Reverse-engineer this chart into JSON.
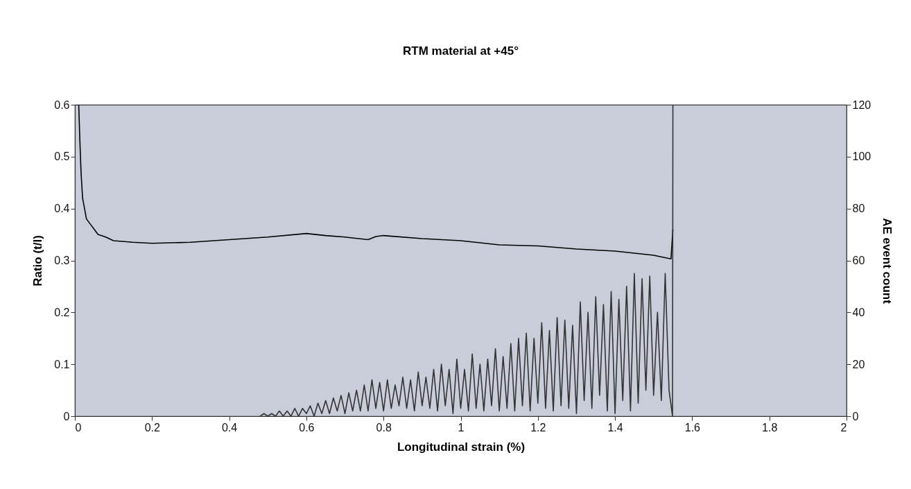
{
  "chart_data": {
    "type": "line",
    "title": "RTM material at +45°",
    "xlabel": "Longitudinal strain (%)",
    "ylabel": "Ratio (t/l)",
    "y2label": "AE event count",
    "xlim": [
      0,
      2
    ],
    "xticks": [
      0,
      0.2,
      0.4,
      0.6,
      0.8,
      1,
      1.2,
      1.4,
      1.6,
      1.8,
      2
    ],
    "ylim": [
      0,
      0.6
    ],
    "yticks": [
      0,
      0.1,
      0.2,
      0.3,
      0.4,
      0.5,
      0.6
    ],
    "y2lim": [
      0,
      120
    ],
    "y2ticks": [
      0,
      20,
      40,
      60,
      80,
      100,
      120
    ],
    "grid": false,
    "marker": "none",
    "line_style": "solid",
    "series": [
      {
        "color": "#000000",
        "x": [
          0.01,
          0.013,
          0.016,
          0.02,
          0.025,
          0.03,
          0.04,
          0.05,
          0.06,
          0.08,
          0.1,
          0.15,
          0.2,
          0.3,
          0.4,
          0.5,
          0.6,
          0.65,
          0.7,
          0.76,
          0.78,
          0.8,
          0.9,
          1.0,
          1.1,
          1.2,
          1.3,
          1.4,
          1.5,
          1.545,
          1.55
        ],
        "values": [
          0.6,
          0.53,
          0.47,
          0.42,
          0.4,
          0.38,
          0.37,
          0.36,
          0.35,
          0.345,
          0.338,
          0.335,
          0.333,
          0.335,
          0.34,
          0.345,
          0.352,
          0.348,
          0.345,
          0.34,
          0.346,
          0.348,
          0.342,
          0.338,
          0.33,
          0.328,
          0.322,
          0.318,
          0.31,
          0.303,
          0.36
        ]
      },
      {
        "color": "#333333",
        "axis": "y2",
        "x": [
          0.48,
          0.49,
          0.5,
          0.51,
          0.52,
          0.53,
          0.54,
          0.55,
          0.56,
          0.57,
          0.58,
          0.59,
          0.6,
          0.61,
          0.62,
          0.63,
          0.64,
          0.65,
          0.66,
          0.67,
          0.68,
          0.69,
          0.7,
          0.71,
          0.72,
          0.73,
          0.74,
          0.75,
          0.76,
          0.77,
          0.78,
          0.79,
          0.8,
          0.81,
          0.82,
          0.83,
          0.84,
          0.85,
          0.86,
          0.87,
          0.88,
          0.89,
          0.9,
          0.91,
          0.92,
          0.93,
          0.94,
          0.95,
          0.96,
          0.97,
          0.98,
          0.99,
          1.0,
          1.01,
          1.02,
          1.03,
          1.04,
          1.05,
          1.06,
          1.07,
          1.08,
          1.09,
          1.1,
          1.11,
          1.12,
          1.13,
          1.14,
          1.15,
          1.16,
          1.17,
          1.18,
          1.19,
          1.2,
          1.21,
          1.22,
          1.23,
          1.24,
          1.25,
          1.26,
          1.27,
          1.28,
          1.29,
          1.3,
          1.31,
          1.32,
          1.33,
          1.34,
          1.35,
          1.36,
          1.37,
          1.38,
          1.39,
          1.4,
          1.41,
          1.42,
          1.43,
          1.44,
          1.45,
          1.46,
          1.47,
          1.48,
          1.49,
          1.5,
          1.51,
          1.52,
          1.53,
          1.54,
          1.549,
          1.55
        ],
        "values": [
          0,
          1,
          0,
          1,
          0,
          2,
          0,
          2,
          0,
          3,
          0,
          3,
          1,
          4,
          0,
          5,
          1,
          6,
          1,
          7,
          2,
          8,
          1,
          9,
          2,
          10,
          2,
          12,
          2,
          14,
          3,
          13,
          2,
          14,
          3,
          12,
          4,
          15,
          3,
          14,
          2,
          17,
          4,
          15,
          3,
          18,
          2,
          20,
          4,
          18,
          1,
          22,
          3,
          18,
          2,
          24,
          3,
          20,
          2,
          22,
          4,
          26,
          2,
          23,
          3,
          28,
          2,
          30,
          4,
          32,
          2,
          30,
          5,
          36,
          3,
          33,
          2,
          38,
          4,
          37,
          3,
          35,
          1,
          44,
          6,
          40,
          3,
          46,
          8,
          43,
          2,
          48,
          1,
          45,
          6,
          50,
          2,
          55,
          5,
          53,
          10,
          54,
          8,
          40,
          6,
          55,
          10,
          0,
          120
        ]
      }
    ]
  }
}
